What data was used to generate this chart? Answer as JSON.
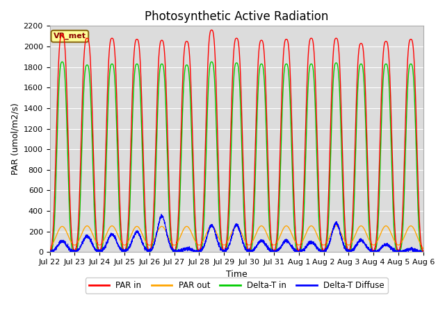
{
  "title": "Photosynthetic Active Radiation",
  "ylabel": "PAR (umol/m2/s)",
  "xlabel": "Time",
  "ylim": [
    0,
    2200
  ],
  "background_color": "#dcdcdc",
  "watermark": "VR_met",
  "legend_labels": [
    "PAR in",
    "PAR out",
    "Delta-T in",
    "Delta-T Diffuse"
  ],
  "legend_colors": [
    "#ff0000",
    "#ffa500",
    "#00cc00",
    "#0000ff"
  ],
  "xtick_labels": [
    "Jul 22",
    "Jul 23",
    "Jul 24",
    "Jul 25",
    "Jul 26",
    "Jul 27",
    "Jul 28",
    "Jul 29",
    "Jul 30",
    "Jul 31",
    "Aug 1",
    "Aug 2",
    "Aug 3",
    "Aug 4",
    "Aug 5",
    "Aug 6"
  ],
  "num_days": 15,
  "par_in_peaks": [
    2120,
    2080,
    2080,
    2070,
    2060,
    2050,
    2160,
    2080,
    2060,
    2070,
    2080,
    2080,
    2030,
    2050,
    2070
  ],
  "par_out_peaks": [
    250,
    255,
    255,
    250,
    250,
    250,
    255,
    255,
    255,
    255,
    255,
    255,
    255,
    255,
    255
  ],
  "delta_in_peaks": [
    1850,
    1820,
    1830,
    1830,
    1830,
    1820,
    1850,
    1840,
    1830,
    1830,
    1830,
    1840,
    1830,
    1830,
    1830
  ],
  "delta_diff_peaks": [
    105,
    155,
    175,
    195,
    350,
    35,
    260,
    265,
    110,
    110,
    100,
    280,
    115,
    75,
    30
  ],
  "title_fontsize": 12,
  "axis_label_fontsize": 9,
  "tick_fontsize": 8,
  "sigma_par_in": 0.22,
  "sigma_delta_in": 0.2,
  "sigma_par_out": 0.25,
  "sigma_delta_diff": 0.18,
  "grid_color": "#ffffff",
  "spine_color": "#aaaaaa"
}
